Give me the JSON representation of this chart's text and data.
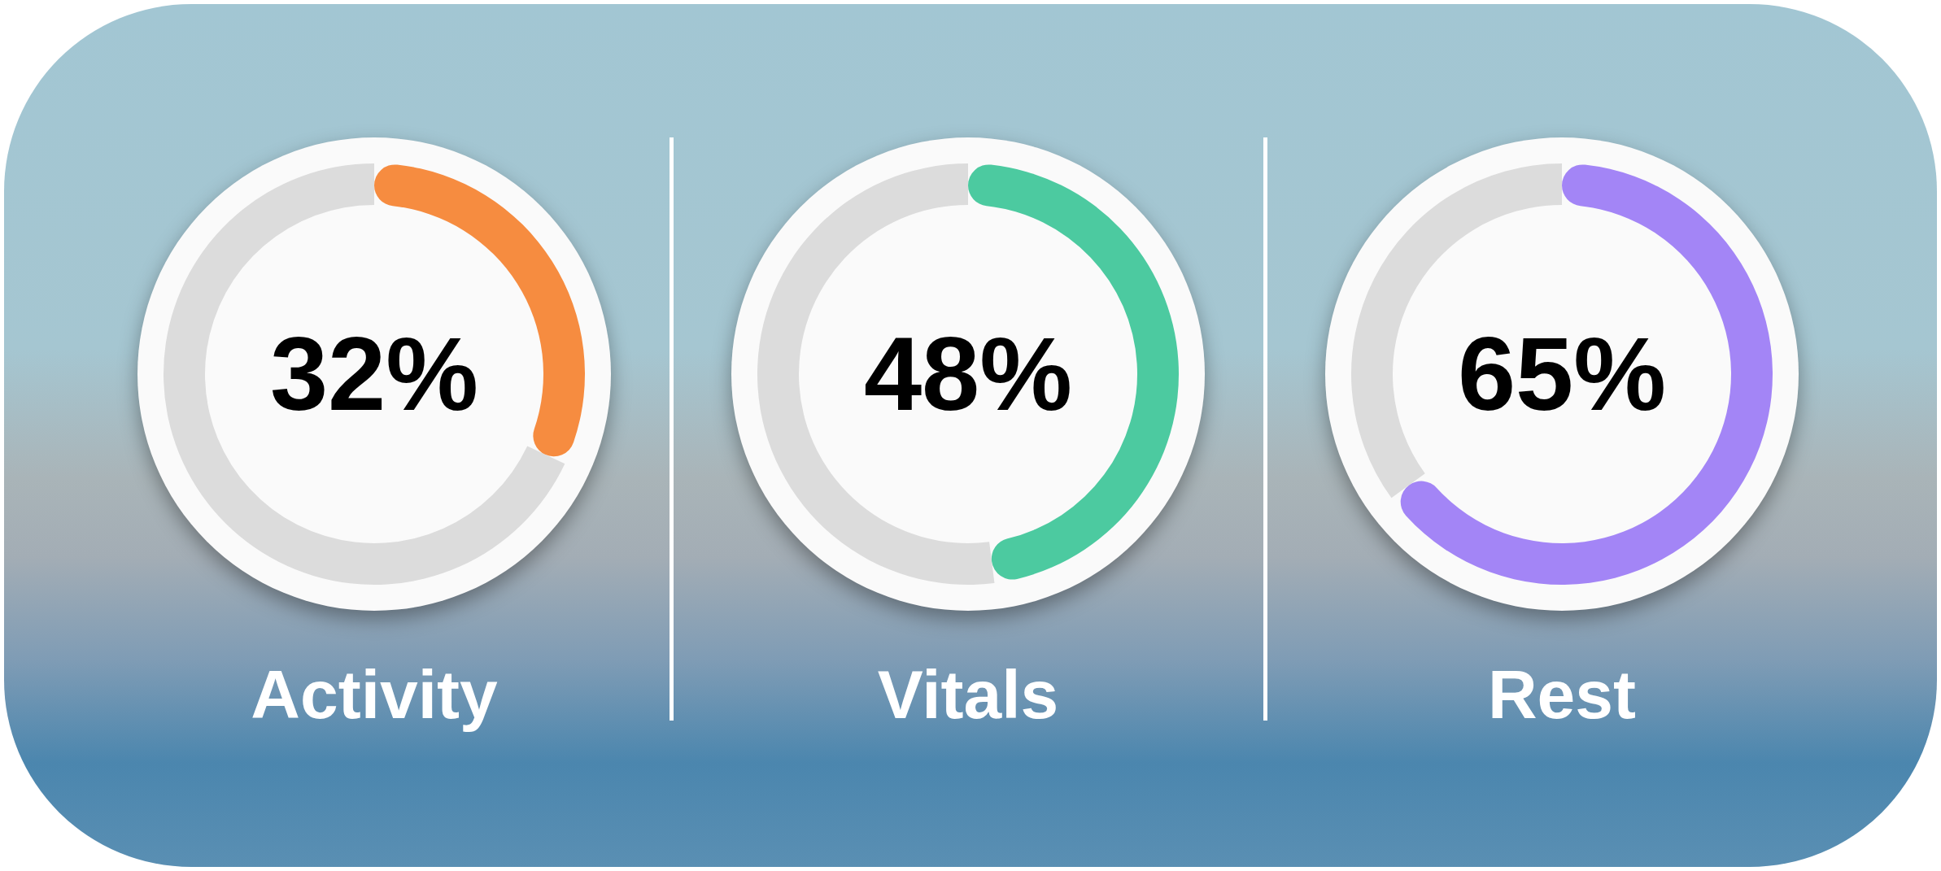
{
  "chart_data": [
    {
      "type": "donut",
      "title": "Activity",
      "categories": [
        null,
        null
      ],
      "values": [
        32,
        68
      ],
      "colors": [
        "#f68c40",
        "#dcdcdc"
      ],
      "value_labels": [
        "32%",
        null
      ]
    },
    {
      "type": "donut",
      "title": "Vitals",
      "categories": [
        null,
        null
      ],
      "values": [
        48,
        52
      ],
      "colors": [
        "#4ccaa0",
        "#dcdcdc"
      ],
      "value_labels": [
        "48%",
        null
      ]
    },
    {
      "type": "donut",
      "title": "Rest",
      "categories": [
        null,
        null
      ],
      "values": [
        65,
        35
      ],
      "colors": [
        "#a385f6",
        "#dcdcdc"
      ],
      "value_labels": [
        "65%",
        null
      ]
    }
  ]
}
